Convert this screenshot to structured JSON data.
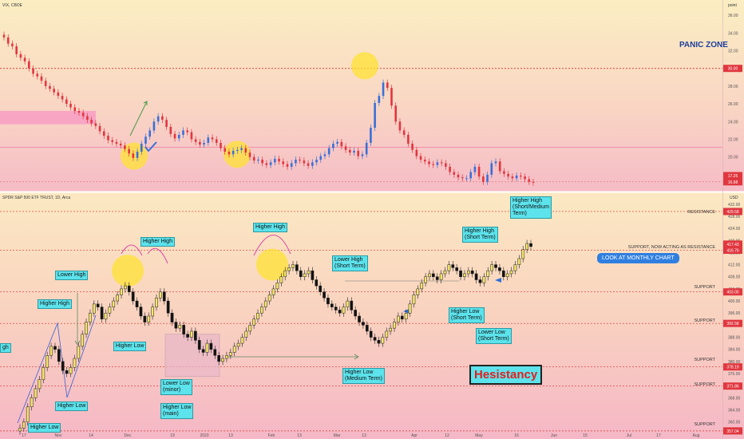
{
  "top_pane": {
    "title": "VIX, CBOE",
    "currency": "point",
    "panic_label": "PANIC ZONE",
    "y_ticks": [
      "36.00",
      "34.00",
      "32.00",
      "30.00",
      "28.00",
      "26.00",
      "24.00",
      "22.00",
      "20.00",
      "18.00"
    ],
    "price_tags": [
      "30.00",
      "17.25",
      "16.88"
    ]
  },
  "bottom_pane": {
    "title": "SPDR S&P 500 ETF TRUST, 1D, Arca",
    "currency": "USD",
    "y_ticks": [
      "432.00",
      "428.00",
      "424.00",
      "420.00",
      "416.00",
      "412.00",
      "408.00",
      "404.00",
      "400.00",
      "396.00",
      "392.00",
      "388.00",
      "384.00",
      "380.00",
      "376.00",
      "372.00",
      "368.00",
      "364.00",
      "360.00"
    ],
    "price_tags": [
      "429.58",
      "416.76",
      "417.43",
      "403.00",
      "392.58",
      "378.19",
      "371.86",
      "357.04"
    ],
    "level_labels": {
      "resistance": "RESISTANCE",
      "support_now": "SUPPORT, NOW ACTING AS RESISTANCE",
      "support1": "SUPPORT",
      "support2": "SUPPORT",
      "support3": "SUPPORT",
      "support4": "SUPPORT",
      "support5": "SUPPORT"
    },
    "notes": {
      "lower_high": "Lower High",
      "higher_high_left": "Higher High",
      "higher_high_mid": "Higher High",
      "higher_high_top": "Higher High",
      "higher_low_mid": "Higher Low",
      "higher_low_1": "Higher Low",
      "higher_low_2": "Higher Low",
      "lower_low_minor": "Lower Low\n(minor)",
      "higher_low_main": "Higher Low\n(main)",
      "lower_high_short": "Lower High\n(Short Term)",
      "higher_low_medium": "Higher Low\n(Medium Term)",
      "higher_high_short": "Higher High\n(Short Term)",
      "higher_low_short": "Higher Low\n(Short Term)",
      "lower_low_short": "Lower Low\n(Short Term)",
      "higher_high_sm": "Higher High\n(Short/Medium\nTerm)",
      "edge_fragment": "gh",
      "monthly_chart": "LOOK AT MONTHLY CHART",
      "hesistancy": "Hesistancy"
    },
    "x_ticks": [
      "17",
      "Nov",
      "14",
      "Dec",
      "19",
      "2023",
      "13",
      "Feb",
      "13",
      "Mar",
      "13",
      "Apr",
      "12",
      "May",
      "16",
      "Jun",
      "15",
      "Jul",
      "17",
      "Aug"
    ]
  },
  "chart_data": [
    {
      "type": "candlestick",
      "title": "VIX, CBOE",
      "ylabel": "point",
      "ylim": [
        17,
        37
      ],
      "series": [
        {
          "name": "VIX",
          "values": [
            33.5,
            32.8,
            32.5,
            31.6,
            31.2,
            30.8,
            30.0,
            29.4,
            29.1,
            28.6,
            28.0,
            27.7,
            27.3,
            26.9,
            26.5,
            26.0,
            25.6,
            25.2,
            25.0,
            24.6,
            24.2,
            23.8,
            23.5,
            22.9,
            22.4,
            21.9,
            21.7,
            21.5,
            21.3,
            20.9,
            20.4,
            19.9,
            20.6,
            21.5,
            22.3,
            23.0,
            24.0,
            24.6,
            24.2,
            23.4,
            22.6,
            22.1,
            22.5,
            23.0,
            22.8,
            22.0,
            21.7,
            21.4,
            21.6,
            22.2,
            22.0,
            21.6,
            21.0,
            20.6,
            20.3,
            20.7,
            20.8,
            21.0,
            20.5,
            20.0,
            19.6,
            19.7,
            19.3,
            19.1,
            19.4,
            19.8,
            19.5,
            19.2,
            18.9,
            19.3,
            19.7,
            19.6,
            19.3,
            19.0,
            19.4,
            19.7,
            20.1,
            20.3,
            21.0,
            21.5,
            21.7,
            21.2,
            20.8,
            20.5,
            20.7,
            20.1,
            20.3,
            21.6,
            23.3,
            26.1,
            26.9,
            28.4,
            27.8,
            25.8,
            24.0,
            23.0,
            22.5,
            21.5,
            20.8,
            20.1,
            19.7,
            19.5,
            19.2,
            19.1,
            19.4,
            19.3,
            18.9,
            18.3,
            18.0,
            17.7,
            17.6,
            17.6,
            18.3,
            18.9,
            17.8,
            17.2,
            18.0,
            19.3,
            19.5,
            18.4,
            18.1,
            17.8,
            17.6,
            17.9,
            17.8,
            17.5,
            17.2,
            17.1
          ]
        }
      ],
      "annotations": [
        "PANIC ZONE"
      ],
      "reference_lines": [
        30.0
      ]
    },
    {
      "type": "candlestick",
      "title": "SPDR S&P 500 ETF TRUST, 1D, Arca",
      "ylabel": "USD",
      "ylim": [
        357,
        433
      ],
      "series": [
        {
          "name": "SPY",
          "values": [
            358,
            360,
            365,
            368,
            371,
            374,
            378,
            382,
            385,
            384,
            380,
            377,
            376,
            378,
            381,
            385,
            389,
            393,
            396,
            399,
            398,
            394,
            396,
            398,
            400,
            402,
            404,
            405,
            403,
            400,
            398,
            395,
            393,
            395,
            398,
            401,
            403,
            400,
            396,
            393,
            391,
            392,
            389,
            388,
            390,
            387,
            384,
            383,
            386,
            384,
            382,
            380,
            381,
            382,
            383,
            385,
            386,
            388,
            390,
            392,
            394,
            396,
            398,
            400,
            402,
            404,
            406,
            408,
            410,
            411,
            412,
            410,
            408,
            409,
            410,
            407,
            405,
            403,
            401,
            399,
            398,
            397,
            396,
            398,
            400,
            397,
            395,
            393,
            392,
            390,
            388,
            387,
            386,
            388,
            390,
            391,
            393,
            395,
            394,
            396,
            399,
            402,
            404,
            406,
            408,
            409,
            408,
            407,
            409,
            410,
            412,
            411,
            410,
            408,
            409,
            410,
            409,
            407,
            406,
            408,
            410,
            412,
            411,
            410,
            408,
            409,
            410,
            412,
            414,
            417,
            419,
            418
          ]
        }
      ],
      "annotations": [
        "Hesistancy",
        "LOOK AT MONTHLY CHART"
      ],
      "reference_lines": [
        429.58,
        416.76,
        403.0,
        392.58,
        378.19,
        371.86,
        357.04
      ]
    }
  ]
}
